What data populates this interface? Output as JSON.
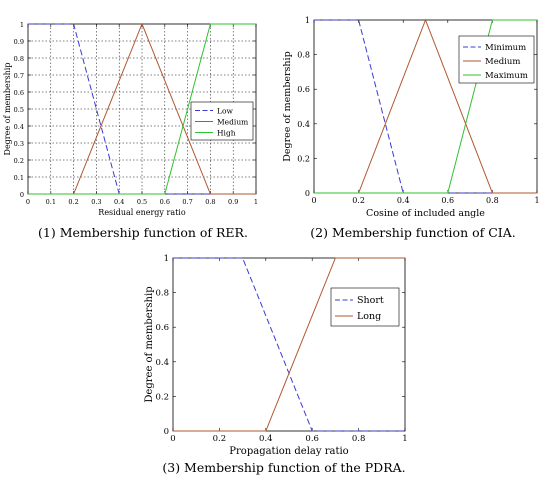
{
  "colors": {
    "low": "#3b3bd6",
    "medium": "#b0572f",
    "high": "#2fc22f",
    "axis": "#000000",
    "grid": "#000000"
  },
  "captions": {
    "c1": "(1) Membership function of RER.",
    "c2": "(2) Membership function of CIA.",
    "c3": "(3) Membership function of the PDRA."
  },
  "chart_data": [
    {
      "type": "line",
      "xlabel": "Residual energy ratio",
      "ylabel": "Degree of membership",
      "xlim": [
        0,
        1
      ],
      "ylim": [
        0,
        1
      ],
      "xticks": [
        "0",
        "0.1",
        "0.2",
        "0.3",
        "0.4",
        "0.5",
        "0.6",
        "0.7",
        "0.8",
        "0.9",
        "1"
      ],
      "yticks": [
        "0",
        "0.1",
        "0.2",
        "0.3",
        "0.4",
        "0.5",
        "0.6",
        "0.7",
        "0.8",
        "0.9",
        "1"
      ],
      "grid": true,
      "legend_position": "center-right",
      "series": [
        {
          "name": "Low",
          "style": "dashed",
          "x": [
            0,
            0.2,
            0.4,
            1
          ],
          "y": [
            1,
            1,
            0,
            0
          ]
        },
        {
          "name": "Medium",
          "style": "solid",
          "x": [
            0,
            0.2,
            0.5,
            0.8,
            1
          ],
          "y": [
            0,
            0,
            1,
            0,
            0
          ]
        },
        {
          "name": "High",
          "style": "solid",
          "x": [
            0,
            0.6,
            0.8,
            1
          ],
          "y": [
            0,
            0,
            1,
            1
          ]
        }
      ]
    },
    {
      "type": "line",
      "xlabel": "Cosine of included angle",
      "ylabel": "Degree of membership",
      "xlim": [
        0,
        1
      ],
      "ylim": [
        0,
        1
      ],
      "xticks": [
        "0",
        "0.2",
        "0.4",
        "0.6",
        "0.8",
        "1"
      ],
      "yticks": [
        "0",
        "0.2",
        "0.4",
        "0.6",
        "0.8",
        "1"
      ],
      "grid": false,
      "legend_position": "top-right",
      "series": [
        {
          "name": "Minimum",
          "style": "dashed",
          "x": [
            0,
            0.2,
            0.4,
            1
          ],
          "y": [
            1,
            1,
            0,
            0
          ]
        },
        {
          "name": "Medium",
          "style": "solid",
          "x": [
            0,
            0.2,
            0.5,
            0.8,
            1
          ],
          "y": [
            0,
            0,
            1,
            0,
            0
          ]
        },
        {
          "name": "Maximum",
          "style": "solid",
          "x": [
            0,
            0.6,
            0.8,
            1
          ],
          "y": [
            0,
            0,
            1,
            1
          ]
        }
      ]
    },
    {
      "type": "line",
      "xlabel": "Propagation delay ratio",
      "ylabel": "Degree of membership",
      "xlim": [
        0,
        1
      ],
      "ylim": [
        0,
        1
      ],
      "xticks": [
        "0",
        "0.2",
        "0.4",
        "0.6",
        "0.8",
        "1"
      ],
      "yticks": [
        "0",
        "0.2",
        "0.4",
        "0.6",
        "0.8",
        "1"
      ],
      "grid": false,
      "legend_position": "center-right",
      "series": [
        {
          "name": "Short",
          "style": "dashed",
          "x": [
            0,
            0.3,
            0.6,
            1
          ],
          "y": [
            1,
            1,
            0,
            0
          ]
        },
        {
          "name": "Long",
          "style": "solid",
          "x": [
            0,
            0.4,
            0.7,
            1
          ],
          "y": [
            0,
            0,
            1,
            1
          ]
        }
      ]
    }
  ]
}
